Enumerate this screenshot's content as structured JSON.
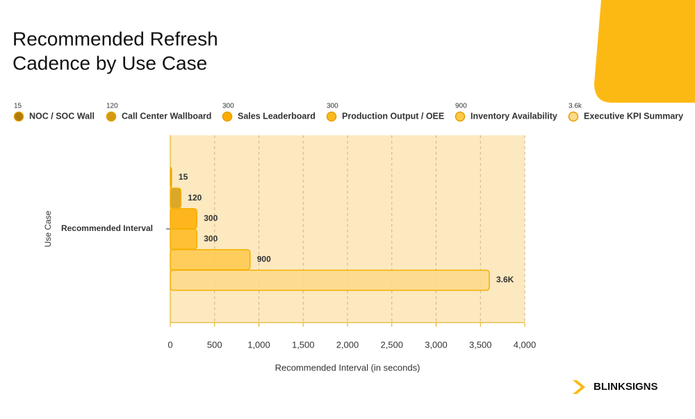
{
  "chart_data": {
    "type": "bar",
    "orientation": "horizontal",
    "title": "Recommended Refresh Cadence by Use Case",
    "title_lines": [
      "Recommended Refresh",
      "Cadence by Use Case"
    ],
    "categories": [
      "Recommended Interval"
    ],
    "x_label": "Recommended Interval (in seconds)",
    "y_label": "Use Case",
    "xlim": [
      0,
      4000
    ],
    "xticks": [
      0,
      500,
      {
        "value": 1000,
        "label": "1,000"
      },
      {
        "value": 1500,
        "label": "1,500"
      },
      {
        "value": 2000,
        "label": "2,000"
      },
      {
        "value": 2500,
        "label": "2,500"
      },
      {
        "value": 3000,
        "label": "3,000"
      },
      {
        "value": 3500,
        "label": "3,500"
      },
      {
        "value": 4000,
        "label": "4,000"
      }
    ],
    "grid": true,
    "series": [
      {
        "name": "NOC / SOC Wall",
        "color": "#b07c0c",
        "values": [
          15
        ]
      },
      {
        "name": "Call Center Wallboard",
        "color": "#d39a12",
        "values": [
          120
        ]
      },
      {
        "name": "Sales Leaderboard",
        "color": "#ffab00",
        "values": [
          300
        ]
      },
      {
        "name": "Production Output / OEE",
        "color": "#ffb81c",
        "values": [
          300
        ]
      },
      {
        "name": "Inventory Availability",
        "color": "#ffc84a",
        "values": [
          900
        ]
      },
      {
        "name": "Executive KPI Summary",
        "color": "#fdd98a",
        "values": [
          3600
        ],
        "value_labels": [
          "3.6K"
        ],
        "legend_value": "3.6k"
      }
    ],
    "brand": "BLINKSIGNS"
  }
}
